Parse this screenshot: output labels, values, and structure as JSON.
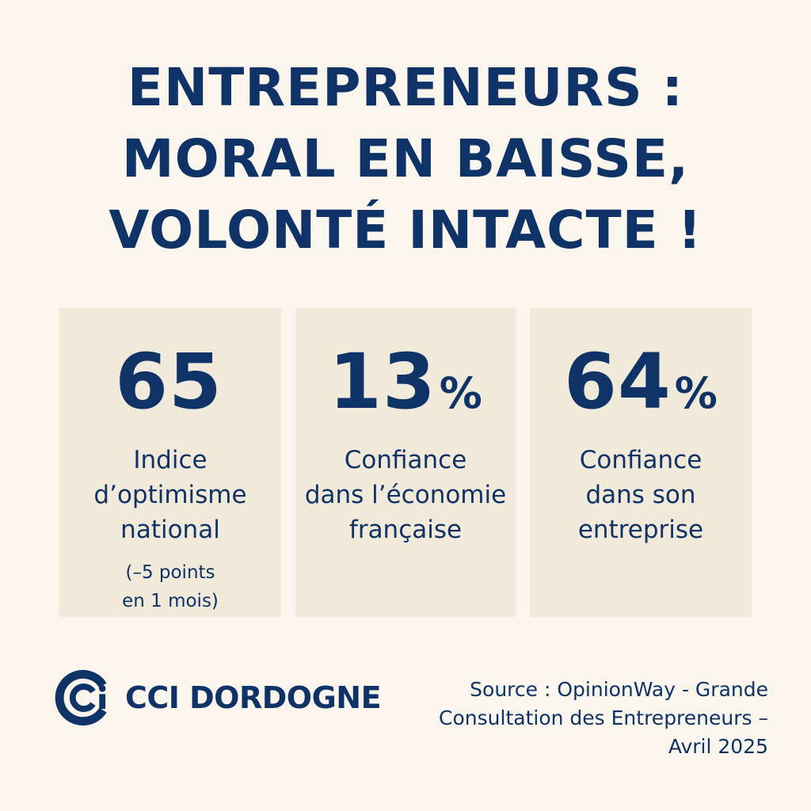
{
  "headline": {
    "line1": "ENTREPRENEURS :",
    "line2": "MORAL EN BAISSE,",
    "line3": "VOLONTÉ INTACTE !"
  },
  "stats": [
    {
      "value": "65",
      "unit": "",
      "label_lines": [
        "Indice",
        "d’optimisme",
        "national"
      ],
      "note_lines": [
        "(–5 points",
        "en 1 mois)"
      ]
    },
    {
      "value": "13",
      "unit": "%",
      "label_lines": [
        "Confiance",
        "dans l’économie",
        "française"
      ]
    },
    {
      "value": "64",
      "unit": "%",
      "label_lines": [
        "Confiance",
        "dans son",
        "entreprise"
      ]
    }
  ],
  "logo": {
    "text": "CCI DORDOGNE",
    "icon": "cci-logo-icon"
  },
  "source": {
    "line1": "Source : OpinionWay - Grande",
    "line2": "Consultation des Entrepreneurs –",
    "line3": "Avril 2025"
  },
  "colors": {
    "primary": "#0f3366",
    "background": "#faf5ed",
    "card": "#f1e9d9"
  }
}
